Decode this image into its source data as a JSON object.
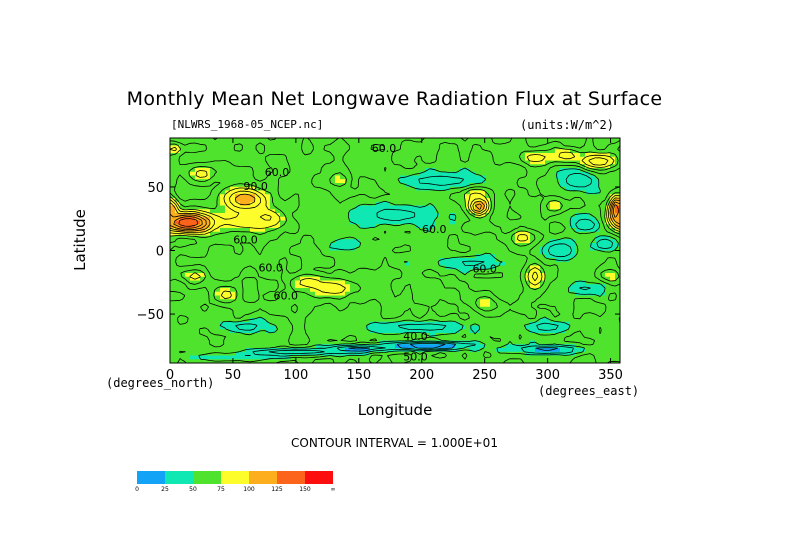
{
  "chart_data": {
    "type": "heatmap",
    "title": "Monthly Mean Net Longwave Radiation Flux at Surface",
    "subtitle_left": "[NLWRS_1968-05_NCEP.nc]",
    "subtitle_right": "(units:W/m^2)",
    "xlabel": "Longitude",
    "ylabel": "Latitude",
    "x_unit": "(degrees_east)",
    "y_unit": "(degrees_north)",
    "xlim": [
      0,
      357.5
    ],
    "ylim": [
      -88.5,
      88.5
    ],
    "x_ticks": [
      0,
      50,
      100,
      150,
      200,
      250,
      300,
      350
    ],
    "y_ticks": [
      -50,
      0,
      50
    ],
    "y_tick_labels": [
      "−50",
      "0",
      "50"
    ],
    "contour_interval_text": "CONTOUR INTERVAL = 1.000E+01",
    "contour_labels": [
      {
        "text": "60.0",
        "lon": 170,
        "lat": 80
      },
      {
        "text": "60.0",
        "lon": 85,
        "lat": 61
      },
      {
        "text": "90.0",
        "lon": 68,
        "lat": 50
      },
      {
        "text": "60.0",
        "lon": 60,
        "lat": 8
      },
      {
        "text": "60.0",
        "lon": 210,
        "lat": 16
      },
      {
        "text": "60.0",
        "lon": 80,
        "lat": -14
      },
      {
        "text": "60.0",
        "lon": 250,
        "lat": -15
      },
      {
        "text": "60.0",
        "lon": 92,
        "lat": -36
      },
      {
        "text": "40.0",
        "lon": 195,
        "lat": -68
      },
      {
        "text": "50.0",
        "lon": 195,
        "lat": -84
      }
    ],
    "color_levels": [
      0,
      25,
      50,
      75,
      100,
      125,
      150
    ],
    "color_level_labels": [
      "0",
      "25",
      "50",
      "75",
      "100",
      "125",
      "150",
      "∞"
    ],
    "colors": [
      "#12a3f6",
      "#10e8b4",
      "#4fe32e",
      "#fdfd2c",
      "#fdae1d",
      "#fd641b",
      "#fd0e0e"
    ],
    "features": [
      {
        "lon": 15,
        "lat": 22,
        "value": 145,
        "wlon": 22,
        "wlat": 8
      },
      {
        "lon": 60,
        "lat": 40,
        "value": 110,
        "wlon": 18,
        "wlat": 10
      },
      {
        "lon": 75,
        "lat": 25,
        "value": 100,
        "wlon": 16,
        "wlat": 8
      },
      {
        "lon": 60,
        "lat": 22,
        "value": 85,
        "wlon": 25,
        "wlat": 8
      },
      {
        "lon": 245,
        "lat": 35,
        "value": 120,
        "wlon": 8,
        "wlat": 8
      },
      {
        "lon": 242,
        "lat": 45,
        "value": 85,
        "wlon": 10,
        "wlat": 6
      },
      {
        "lon": 355,
        "lat": 32,
        "value": 140,
        "wlon": 6,
        "wlat": 10
      },
      {
        "lon": 1,
        "lat": 32,
        "value": 110,
        "wlon": 6,
        "wlat": 8
      },
      {
        "lon": 290,
        "lat": -20,
        "value": 95,
        "wlon": 8,
        "wlat": 10
      },
      {
        "lon": 280,
        "lat": 10,
        "value": 85,
        "wlon": 10,
        "wlat": 6
      },
      {
        "lon": 110,
        "lat": -25,
        "value": 85,
        "wlon": 15,
        "wlat": 7
      },
      {
        "lon": 130,
        "lat": -30,
        "value": 85,
        "wlon": 20,
        "wlat": 8
      },
      {
        "lon": 20,
        "lat": -20,
        "value": 85,
        "wlon": 10,
        "wlat": 6
      },
      {
        "lon": 290,
        "lat": 73,
        "value": 85,
        "wlon": 15,
        "wlat": 6
      },
      {
        "lon": 315,
        "lat": 75,
        "value": 85,
        "wlon": 12,
        "wlat": 6
      },
      {
        "lon": 340,
        "lat": 70,
        "value": 100,
        "wlon": 15,
        "wlat": 6
      },
      {
        "lon": 25,
        "lat": 60,
        "value": 85,
        "wlon": 10,
        "wlat": 6
      },
      {
        "lon": 3,
        "lat": 80,
        "value": 85,
        "wlon": 6,
        "wlat": 4
      },
      {
        "lon": 135,
        "lat": 55,
        "value": 80,
        "wlon": 8,
        "wlat": 6
      },
      {
        "lon": 45,
        "lat": -35,
        "value": 85,
        "wlon": 10,
        "wlat": 8
      },
      {
        "lon": 250,
        "lat": -42,
        "value": 80,
        "wlon": 10,
        "wlat": 6
      },
      {
        "lon": 350,
        "lat": -20,
        "value": 80,
        "wlon": 10,
        "wlat": 6
      },
      {
        "lon": 305,
        "lat": 35,
        "value": 80,
        "wlon": 8,
        "wlat": 5
      },
      {
        "lon": 215,
        "lat": 55,
        "value": 35,
        "wlon": 35,
        "wlat": 7
      },
      {
        "lon": 180,
        "lat": 28,
        "value": 35,
        "wlon": 35,
        "wlat": 8
      },
      {
        "lon": 140,
        "lat": 5,
        "value": 40,
        "wlon": 15,
        "wlat": 6
      },
      {
        "lon": 325,
        "lat": 55,
        "value": 30,
        "wlon": 15,
        "wlat": 8
      },
      {
        "lon": 310,
        "lat": 0,
        "value": 30,
        "wlon": 15,
        "wlat": 8
      },
      {
        "lon": 330,
        "lat": 20,
        "value": 30,
        "wlon": 12,
        "wlat": 6
      },
      {
        "lon": 345,
        "lat": 5,
        "value": 30,
        "wlon": 10,
        "wlat": 6
      },
      {
        "lon": 240,
        "lat": -10,
        "value": 38,
        "wlon": 30,
        "wlat": 6
      },
      {
        "lon": 330,
        "lat": -30,
        "value": 38,
        "wlon": 15,
        "wlat": 6
      },
      {
        "lon": 200,
        "lat": -60,
        "value": 35,
        "wlon": 40,
        "wlat": 5
      },
      {
        "lon": 300,
        "lat": -60,
        "value": 35,
        "wlon": 20,
        "wlat": 5
      },
      {
        "lon": 60,
        "lat": -60,
        "value": 35,
        "wlon": 20,
        "wlat": 5
      },
      {
        "lon": 205,
        "lat": -75,
        "value": 5,
        "wlon": 35,
        "wlat": 3
      },
      {
        "lon": 150,
        "lat": -77,
        "value": 15,
        "wlon": 25,
        "wlat": 3
      },
      {
        "lon": 100,
        "lat": -80,
        "value": 20,
        "wlon": 40,
        "wlat": 3
      },
      {
        "lon": 300,
        "lat": -78,
        "value": 22,
        "wlon": 30,
        "wlat": 3
      },
      {
        "lon": 50,
        "lat": -84,
        "value": 30,
        "wlon": 30,
        "wlat": 2
      }
    ]
  }
}
